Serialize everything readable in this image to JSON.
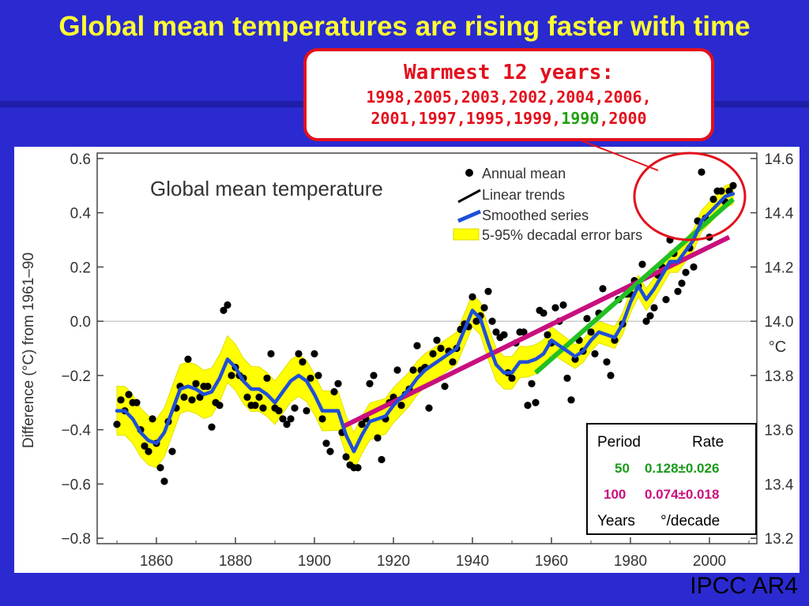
{
  "slide": {
    "title": "Global mean temperatures are rising faster with time",
    "source": "IPCC AR4"
  },
  "callout": {
    "heading": "Warmest 12 years:",
    "line1": "1998,2005,2003,2002,2004,2006,",
    "line2_prefix": "2001,1997,1995,1999,",
    "line2_highlight": "1990",
    "line2_suffix": ",2000",
    "border_color": "#e3101c",
    "text_color": "#e3101c",
    "highlight_color": "#22a012"
  },
  "rate_table": {
    "header_period": "Period",
    "header_rate": "Rate",
    "rows": [
      {
        "period": "50",
        "rate": "0.128±0.026",
        "color": "#1a9a1a"
      },
      {
        "period": "100",
        "rate": "0.074±0.018",
        "color": "#c8107e"
      }
    ],
    "footer_period": "Years",
    "footer_rate": "°/decade"
  },
  "chart_data": {
    "type": "scatter",
    "title": "Global mean temperature",
    "ylabel": "Difference (°C) from 1961–90",
    "y2label": "°C",
    "xlim": [
      1845,
      2012
    ],
    "ylim": [
      -0.82,
      0.62
    ],
    "xticks": [
      1860,
      1880,
      1900,
      1920,
      1940,
      1960,
      1980,
      2000
    ],
    "yticks": [
      -0.8,
      -0.6,
      -0.4,
      -0.2,
      0.0,
      0.2,
      0.4,
      0.6
    ],
    "ytick_labels": [
      "−0.8",
      "−0.6",
      "−0.4",
      "−0.2",
      "0.0",
      "0.2",
      "0.4",
      "0.6"
    ],
    "y2ticks": [
      13.2,
      13.4,
      13.6,
      13.8,
      14.0,
      14.2,
      14.4,
      14.6
    ],
    "y2_offset": 14.0,
    "grid": "zero line only",
    "legend_position": "top-right",
    "legend": [
      {
        "label": "Annual mean",
        "kind": "dot"
      },
      {
        "label": "Linear trends",
        "kind": "line"
      },
      {
        "label": "Smoothed series",
        "kind": "smooth"
      },
      {
        "label": "5-95% decadal error bars",
        "kind": "band"
      }
    ],
    "colors": {
      "dots": "#000000",
      "smoothed": "#1f4fd8",
      "band": "#ffff00",
      "trend_50": "#22c022",
      "trend_100": "#c8107e",
      "highlight_circle": "#e3101c"
    },
    "annual_mean": {
      "years": [
        1850,
        1851,
        1852,
        1853,
        1854,
        1855,
        1856,
        1857,
        1858,
        1859,
        1860,
        1861,
        1862,
        1863,
        1864,
        1865,
        1866,
        1867,
        1868,
        1869,
        1870,
        1871,
        1872,
        1873,
        1874,
        1875,
        1876,
        1877,
        1878,
        1879,
        1880,
        1881,
        1882,
        1883,
        1884,
        1885,
        1886,
        1887,
        1888,
        1889,
        1890,
        1891,
        1892,
        1893,
        1894,
        1895,
        1896,
        1897,
        1898,
        1899,
        1900,
        1901,
        1902,
        1903,
        1904,
        1905,
        1906,
        1907,
        1908,
        1909,
        1910,
        1911,
        1912,
        1913,
        1914,
        1915,
        1916,
        1917,
        1918,
        1919,
        1920,
        1921,
        1922,
        1923,
        1924,
        1925,
        1926,
        1927,
        1928,
        1929,
        1930,
        1931,
        1932,
        1933,
        1934,
        1935,
        1936,
        1937,
        1938,
        1939,
        1940,
        1941,
        1942,
        1943,
        1944,
        1945,
        1946,
        1947,
        1948,
        1949,
        1950,
        1951,
        1952,
        1953,
        1954,
        1955,
        1956,
        1957,
        1958,
        1959,
        1960,
        1961,
        1962,
        1963,
        1964,
        1965,
        1966,
        1967,
        1968,
        1969,
        1970,
        1971,
        1972,
        1973,
        1974,
        1975,
        1976,
        1977,
        1978,
        1979,
        1980,
        1981,
        1982,
        1983,
        1984,
        1985,
        1986,
        1987,
        1988,
        1989,
        1990,
        1991,
        1992,
        1993,
        1994,
        1995,
        1996,
        1997,
        1998,
        1999,
        2000,
        2001,
        2002,
        2003,
        2004,
        2005,
        2006
      ],
      "values": [
        -0.38,
        -0.29,
        -0.33,
        -0.27,
        -0.3,
        -0.3,
        -0.4,
        -0.46,
        -0.48,
        -0.36,
        -0.45,
        -0.54,
        -0.59,
        -0.37,
        -0.48,
        -0.32,
        -0.24,
        -0.28,
        -0.14,
        -0.29,
        -0.23,
        -0.28,
        -0.24,
        -0.24,
        -0.39,
        -0.3,
        -0.31,
        0.04,
        0.06,
        -0.2,
        -0.17,
        -0.2,
        -0.21,
        -0.28,
        -0.31,
        -0.31,
        -0.28,
        -0.32,
        -0.21,
        -0.12,
        -0.32,
        -0.33,
        -0.36,
        -0.38,
        -0.36,
        -0.32,
        -0.12,
        -0.15,
        -0.33,
        -0.21,
        -0.12,
        -0.2,
        -0.36,
        -0.45,
        -0.48,
        -0.26,
        -0.23,
        -0.41,
        -0.5,
        -0.53,
        -0.54,
        -0.54,
        -0.38,
        -0.36,
        -0.23,
        -0.2,
        -0.43,
        -0.51,
        -0.36,
        -0.3,
        -0.28,
        -0.18,
        -0.31,
        -0.27,
        -0.25,
        -0.18,
        -0.09,
        -0.18,
        -0.17,
        -0.32,
        -0.12,
        -0.07,
        -0.1,
        -0.24,
        -0.11,
        -0.15,
        -0.1,
        -0.03,
        -0.01,
        -0.02,
        0.09,
        0.0,
        0.02,
        0.05,
        0.11,
        0.0,
        -0.04,
        -0.06,
        -0.05,
        -0.19,
        -0.21,
        -0.08,
        -0.04,
        -0.04,
        -0.31,
        -0.23,
        -0.3,
        0.04,
        0.03,
        -0.05,
        -0.08,
        0.05,
        0.0,
        0.06,
        -0.21,
        -0.29,
        -0.14,
        -0.07,
        -0.11,
        0.01,
        -0.04,
        -0.12,
        0.03,
        0.12,
        -0.15,
        -0.2,
        -0.07,
        0.08,
        -0.01,
        0.1,
        0.1,
        0.15,
        0.13,
        0.21,
        0.0,
        0.02,
        0.05,
        0.17,
        0.2,
        0.08,
        0.3,
        0.25,
        0.11,
        0.14,
        0.18,
        0.27,
        0.2,
        0.37,
        0.55,
        0.38,
        0.31,
        0.45,
        0.48,
        0.48,
        0.44,
        0.48,
        0.5
      ]
    },
    "smoothed": {
      "years": [
        1850,
        1852,
        1854,
        1856,
        1858,
        1860,
        1862,
        1864,
        1866,
        1868,
        1870,
        1872,
        1874,
        1876,
        1878,
        1880,
        1882,
        1884,
        1886,
        1888,
        1890,
        1892,
        1894,
        1896,
        1898,
        1900,
        1902,
        1904,
        1906,
        1908,
        1910,
        1912,
        1914,
        1916,
        1918,
        1920,
        1922,
        1924,
        1926,
        1928,
        1930,
        1932,
        1934,
        1936,
        1938,
        1940,
        1942,
        1944,
        1946,
        1948,
        1950,
        1952,
        1954,
        1956,
        1958,
        1960,
        1962,
        1964,
        1966,
        1968,
        1970,
        1972,
        1974,
        1976,
        1978,
        1980,
        1982,
        1984,
        1986,
        1988,
        1990,
        1992,
        1994,
        1996,
        1998,
        2000,
        2002,
        2004,
        2006
      ],
      "values": [
        -0.33,
        -0.33,
        -0.36,
        -0.41,
        -0.44,
        -0.45,
        -0.41,
        -0.33,
        -0.25,
        -0.24,
        -0.25,
        -0.27,
        -0.26,
        -0.21,
        -0.14,
        -0.17,
        -0.22,
        -0.25,
        -0.25,
        -0.27,
        -0.3,
        -0.26,
        -0.22,
        -0.2,
        -0.22,
        -0.27,
        -0.33,
        -0.33,
        -0.33,
        -0.42,
        -0.48,
        -0.42,
        -0.37,
        -0.36,
        -0.35,
        -0.31,
        -0.28,
        -0.25,
        -0.21,
        -0.18,
        -0.16,
        -0.14,
        -0.12,
        -0.1,
        -0.03,
        0.04,
        0.01,
        -0.08,
        -0.16,
        -0.19,
        -0.19,
        -0.15,
        -0.15,
        -0.14,
        -0.12,
        -0.07,
        -0.09,
        -0.11,
        -0.13,
        -0.11,
        -0.07,
        -0.04,
        -0.05,
        -0.06,
        -0.01,
        0.07,
        0.13,
        0.08,
        0.12,
        0.17,
        0.22,
        0.22,
        0.26,
        0.3,
        0.37,
        0.4,
        0.43,
        0.46,
        0.47
      ]
    },
    "error_band_halfwidth": {
      "years": [
        1850,
        1870,
        1890,
        1910,
        1930,
        1950,
        1970,
        1990,
        2006
      ],
      "values": [
        0.09,
        0.09,
        0.08,
        0.07,
        0.06,
        0.06,
        0.04,
        0.04,
        0.04
      ]
    },
    "trends": [
      {
        "period_years": 100,
        "color": "#c8107e",
        "x": [
          1907,
          2005
        ],
        "y": [
          -0.39,
          0.31
        ]
      },
      {
        "period_years": 50,
        "color": "#22c022",
        "x": [
          1956,
          2006
        ],
        "y": [
          -0.19,
          0.45
        ]
      }
    ],
    "highlight_circle": {
      "x_range": [
        1981,
        2009
      ],
      "y_range": [
        0.3,
        0.62
      ]
    }
  }
}
